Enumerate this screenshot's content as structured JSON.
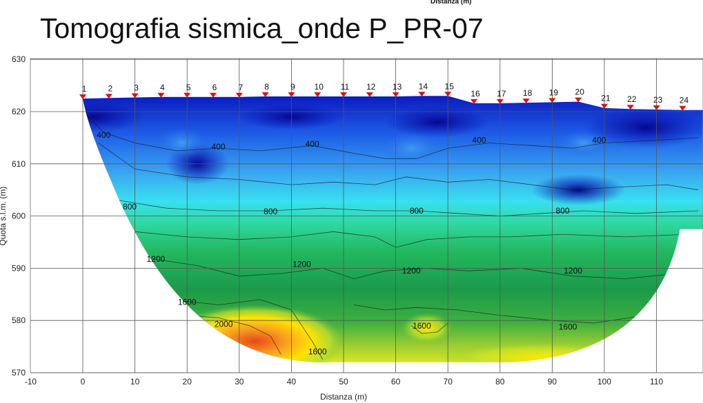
{
  "chart_data": {
    "type": "heatmap",
    "title": "Tomografia sismica_onde P_PR-07",
    "top_xlabel": "Distanza (m)",
    "xlabel": "Distanza (m)",
    "ylabel": "Quota s.l.m. (m)",
    "xlim": [
      -10,
      118
    ],
    "ylim": [
      570,
      630
    ],
    "x_ticks": [
      -10,
      0,
      10,
      20,
      30,
      40,
      50,
      60,
      70,
      80,
      90,
      100,
      110
    ],
    "y_ticks": [
      570,
      580,
      590,
      600,
      610,
      620,
      630
    ],
    "grid": true,
    "colormap": [
      "#0a0fb0",
      "#1660e8",
      "#2fd0f0",
      "#28c878",
      "#1aa24a",
      "#8acb2c",
      "#ffe800",
      "#f06020"
    ],
    "stations": [
      {
        "label": "1",
        "x": 0,
        "y": 622.5
      },
      {
        "label": "2",
        "x": 5,
        "y": 622.6
      },
      {
        "label": "3",
        "x": 10,
        "y": 622.7
      },
      {
        "label": "4",
        "x": 15,
        "y": 622.8
      },
      {
        "label": "5",
        "x": 20,
        "y": 622.8
      },
      {
        "label": "6",
        "x": 25,
        "y": 622.8
      },
      {
        "label": "7",
        "x": 30,
        "y": 622.8
      },
      {
        "label": "8",
        "x": 35,
        "y": 622.9
      },
      {
        "label": "9",
        "x": 40,
        "y": 622.9
      },
      {
        "label": "10",
        "x": 45,
        "y": 622.9
      },
      {
        "label": "11",
        "x": 50,
        "y": 622.9
      },
      {
        "label": "12",
        "x": 55,
        "y": 622.9
      },
      {
        "label": "13",
        "x": 60,
        "y": 622.9
      },
      {
        "label": "14",
        "x": 65,
        "y": 623.0
      },
      {
        "label": "15",
        "x": 70,
        "y": 623.0
      },
      {
        "label": "16",
        "x": 75,
        "y": 621.6
      },
      {
        "label": "17",
        "x": 80,
        "y": 621.6
      },
      {
        "label": "18",
        "x": 85,
        "y": 621.7
      },
      {
        "label": "19",
        "x": 90,
        "y": 621.8
      },
      {
        "label": "20",
        "x": 95,
        "y": 621.9
      },
      {
        "label": "21",
        "x": 100,
        "y": 620.7
      },
      {
        "label": "22",
        "x": 105,
        "y": 620.5
      },
      {
        "label": "23",
        "x": 110,
        "y": 620.4
      },
      {
        "label": "24",
        "x": 115,
        "y": 620.3
      }
    ],
    "contours": [
      400,
      800,
      1200,
      1600,
      2000
    ],
    "contour_labels": [
      {
        "text": "400",
        "x": 4,
        "y": 615.5
      },
      {
        "text": "400",
        "x": 26,
        "y": 613.3
      },
      {
        "text": "400",
        "x": 44,
        "y": 613.8
      },
      {
        "text": "400",
        "x": 76,
        "y": 614.5
      },
      {
        "text": "400",
        "x": 99,
        "y": 614.5
      },
      {
        "text": "800",
        "x": 9,
        "y": 601.8
      },
      {
        "text": "800",
        "x": 36,
        "y": 600.9
      },
      {
        "text": "800",
        "x": 64,
        "y": 601.0
      },
      {
        "text": "800",
        "x": 92,
        "y": 601.0
      },
      {
        "text": "1200",
        "x": 14,
        "y": 591.8
      },
      {
        "text": "1200",
        "x": 42,
        "y": 590.8
      },
      {
        "text": "1200",
        "x": 63,
        "y": 589.5
      },
      {
        "text": "1200",
        "x": 94,
        "y": 589.5
      },
      {
        "text": "1600",
        "x": 20,
        "y": 583.5
      },
      {
        "text": "1600",
        "x": 45,
        "y": 574.0
      },
      {
        "text": "1600",
        "x": 65,
        "y": 579.0
      },
      {
        "text": "1600",
        "x": 93,
        "y": 578.8
      },
      {
        "text": "2000",
        "x": 27,
        "y": 579.3
      }
    ]
  }
}
